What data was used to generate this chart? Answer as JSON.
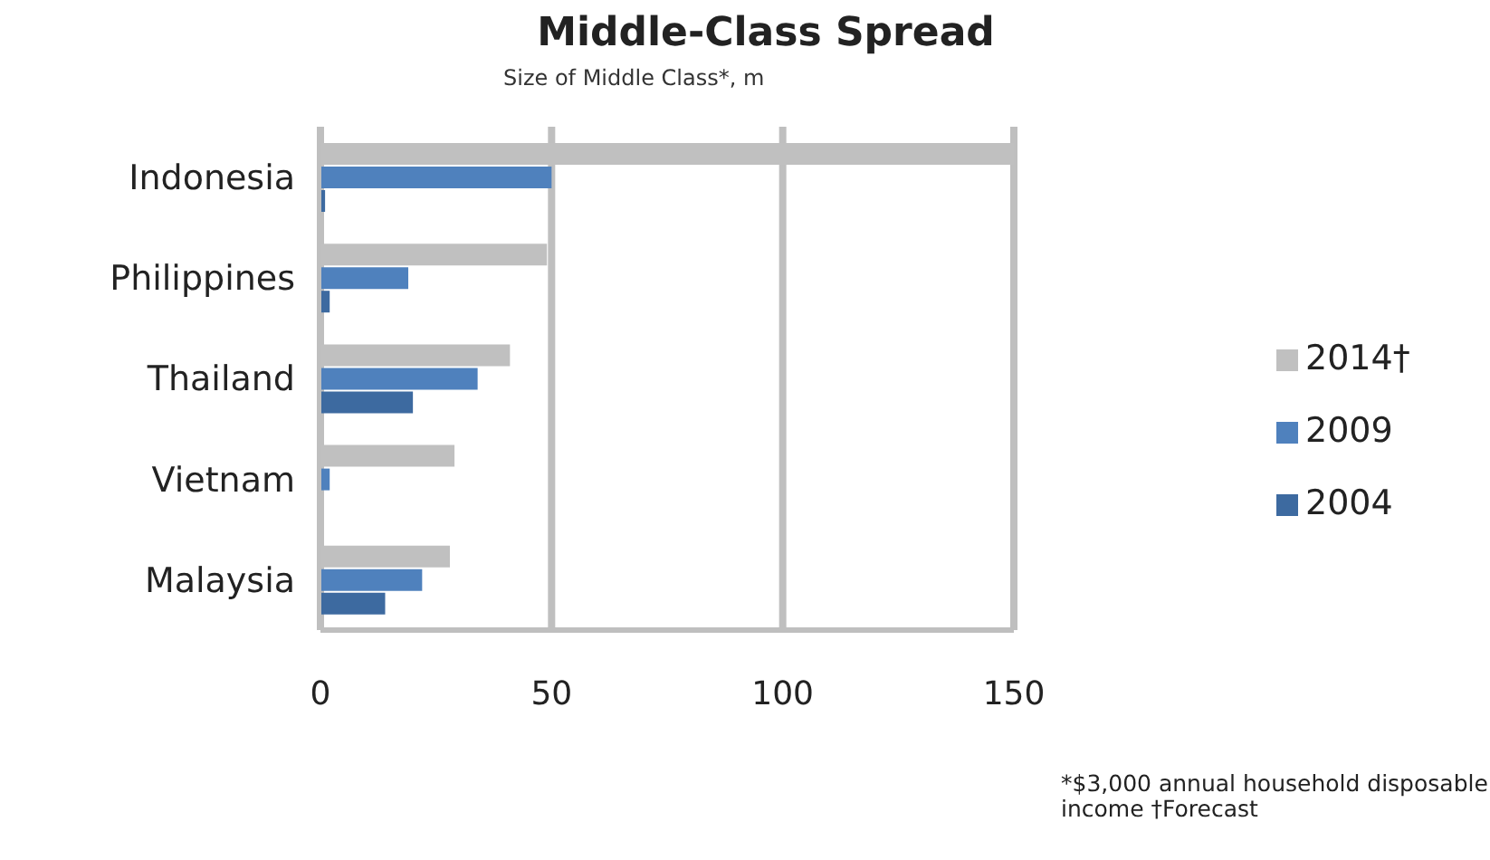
{
  "chart_data": {
    "type": "bar",
    "orientation": "horizontal",
    "title": "Middle-Class Spread",
    "subtitle": "Size of Middle Class*, m",
    "categories": [
      "Indonesia",
      "Philippines",
      "Thailand",
      "Vietnam",
      "Malaysia"
    ],
    "series": [
      {
        "name": "2014†",
        "color": "#c0c0c0",
        "values": [
          150,
          49,
          41,
          29,
          28
        ]
      },
      {
        "name": "2009",
        "color": "#4f81bd",
        "values": [
          50,
          19,
          34,
          2,
          22
        ]
      },
      {
        "name": "2004",
        "color": "#3d6aa0",
        "values": [
          1,
          2,
          20,
          null,
          14
        ]
      }
    ],
    "xlim": [
      0,
      150
    ],
    "xticks": [
      0,
      50,
      100,
      150
    ],
    "grid": "x",
    "legend": "right",
    "annotations": [
      "*$3,000 annual household disposable income †Forecast"
    ]
  }
}
